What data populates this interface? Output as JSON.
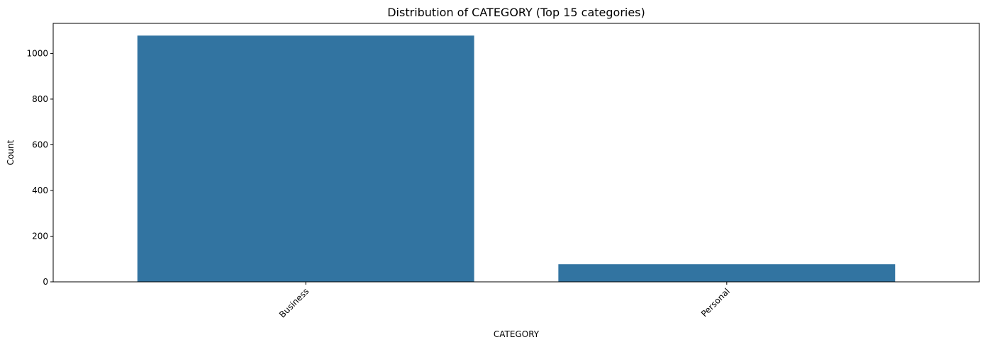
{
  "chart_data": {
    "type": "bar",
    "title": "Distribution of CATEGORY (Top 15 categories)",
    "xlabel": "CATEGORY",
    "ylabel": "Count",
    "categories": [
      "Business",
      "Personal"
    ],
    "values": [
      1078,
      77
    ],
    "ylim": [
      0,
      1131.5
    ],
    "yticks": [
      0,
      200,
      400,
      600,
      800,
      1000
    ],
    "bar_color": "#3274a1",
    "grid": false,
    "legend": "none",
    "xtick_rotation_deg": 45
  }
}
